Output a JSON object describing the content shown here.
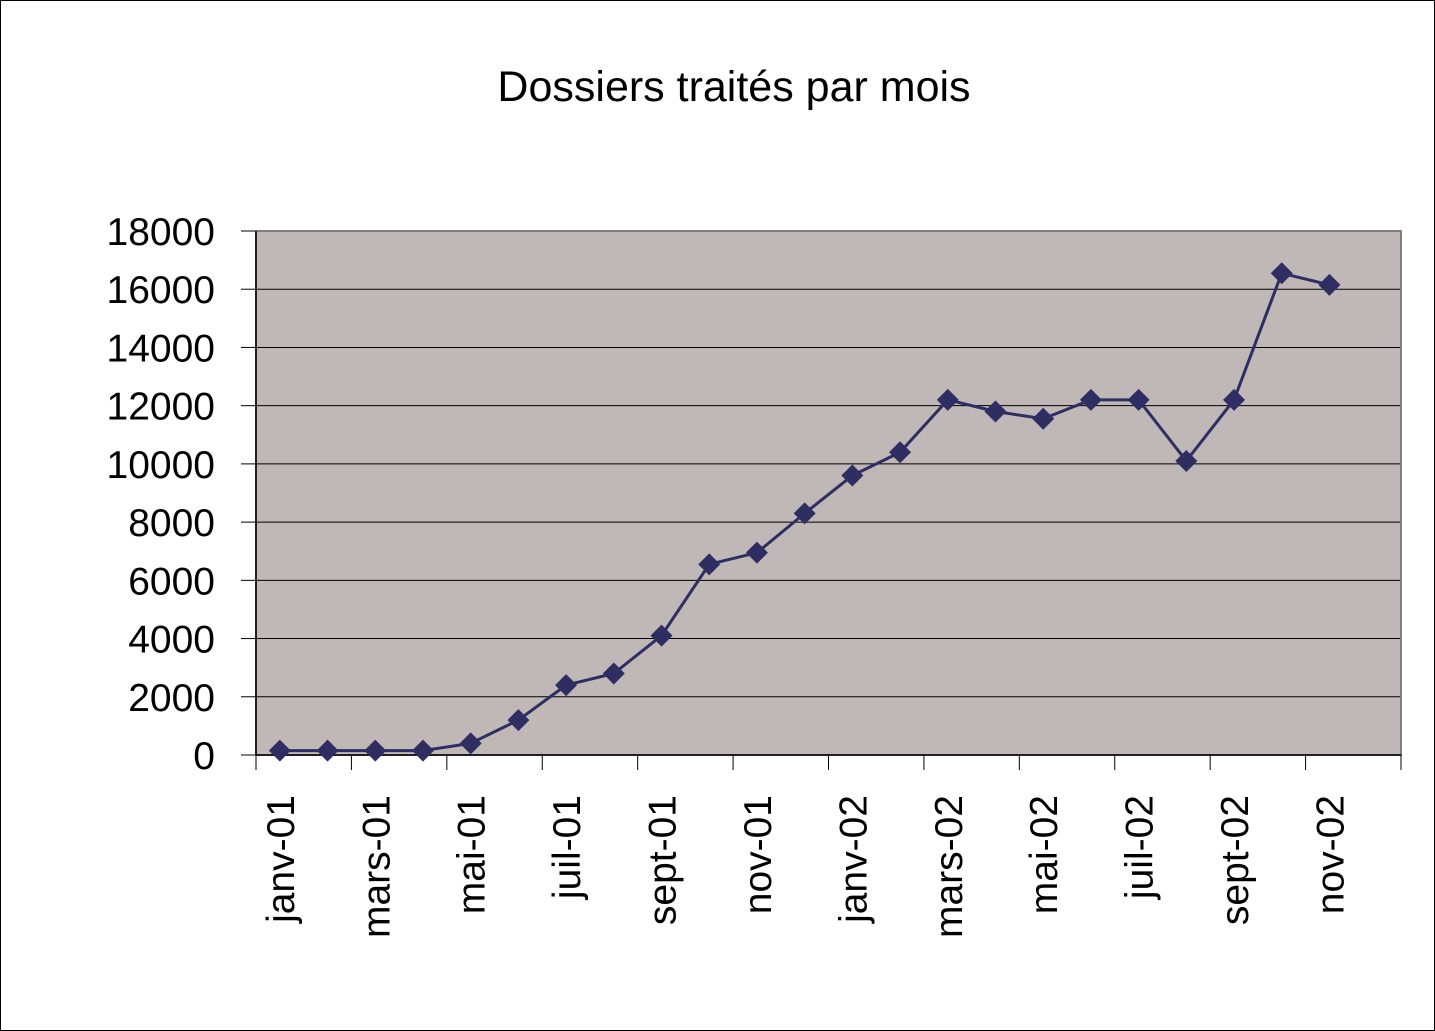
{
  "chart_data": {
    "type": "line",
    "title": "Dossiers traités par mois",
    "categories": [
      "janv-01",
      null,
      "mars-01",
      null,
      "mai-01",
      null,
      "juil-01",
      null,
      "sept-01",
      null,
      "nov-01",
      null,
      "janv-02",
      null,
      "mars-02",
      null,
      "mai-02",
      null,
      "juil-02",
      null,
      "sept-02",
      null,
      "nov-02",
      null
    ],
    "series": [
      {
        "name": "Dossiers",
        "color": "#2e2e62",
        "values": [
          150,
          150,
          150,
          150,
          400,
          1200,
          2400,
          2800,
          4100,
          6550,
          6950,
          8300,
          9600,
          10400,
          12200,
          11800,
          11550,
          12200,
          12200,
          10100,
          12200,
          16550,
          16150,
          null
        ]
      }
    ],
    "ylim": [
      0,
      18000
    ],
    "yticks": [
      0,
      2000,
      4000,
      6000,
      8000,
      10000,
      12000,
      14000,
      16000,
      18000
    ],
    "grid": true,
    "plot_background": "#c0b8b6"
  }
}
